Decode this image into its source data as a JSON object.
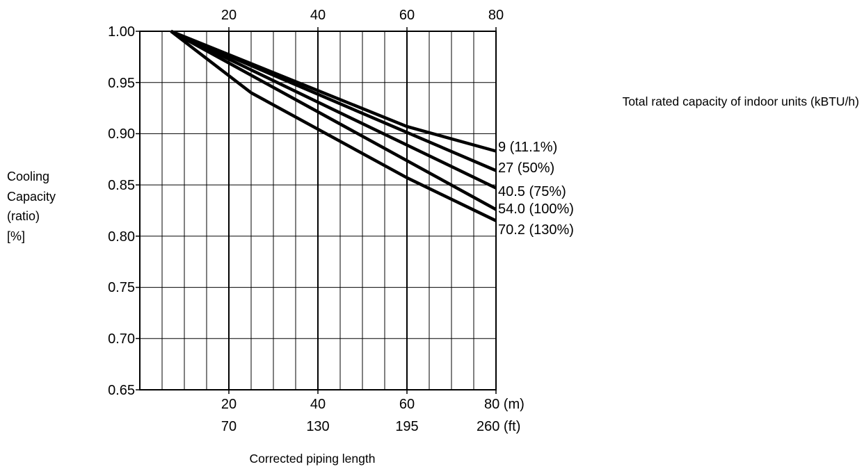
{
  "chart_data": {
    "type": "line",
    "legend_title": "Total rated capacity of indoor units (kBTU/h)",
    "xlabel": "Corrected piping length",
    "ylabel_lines": [
      "Cooling",
      "Capacity",
      "(ratio)",
      "[%]"
    ],
    "xlim": [
      0,
      80
    ],
    "ylim": [
      0.65,
      1.0
    ],
    "x_ticks_top": [
      "20",
      "40",
      "60",
      "80"
    ],
    "x_ticks_m": [
      "20",
      "40",
      "60",
      "80 (m)"
    ],
    "x_ticks_ft": [
      "70",
      "130",
      "195",
      "260 (ft)"
    ],
    "y_ticks": [
      "1.00",
      "0.95",
      "0.90",
      "0.85",
      "0.80",
      "0.75",
      "0.70",
      "0.65"
    ],
    "grid": true,
    "series": [
      {
        "name": "9 (11.1%)",
        "x": [
          7,
          60,
          80
        ],
        "y": [
          1.0,
          0.907,
          0.883
        ]
      },
      {
        "name": "27 (50%)",
        "x": [
          7,
          80
        ],
        "y": [
          1.0,
          0.864
        ]
      },
      {
        "name": "40.5 (75%)",
        "x": [
          7,
          80
        ],
        "y": [
          1.0,
          0.847
        ]
      },
      {
        "name": "54.0 (100%)",
        "x": [
          7,
          80
        ],
        "y": [
          1.0,
          0.826
        ]
      },
      {
        "name": "70.2 (130%)",
        "x": [
          7,
          25,
          60,
          80
        ],
        "y": [
          1.0,
          0.94,
          0.857,
          0.815
        ]
      }
    ]
  }
}
